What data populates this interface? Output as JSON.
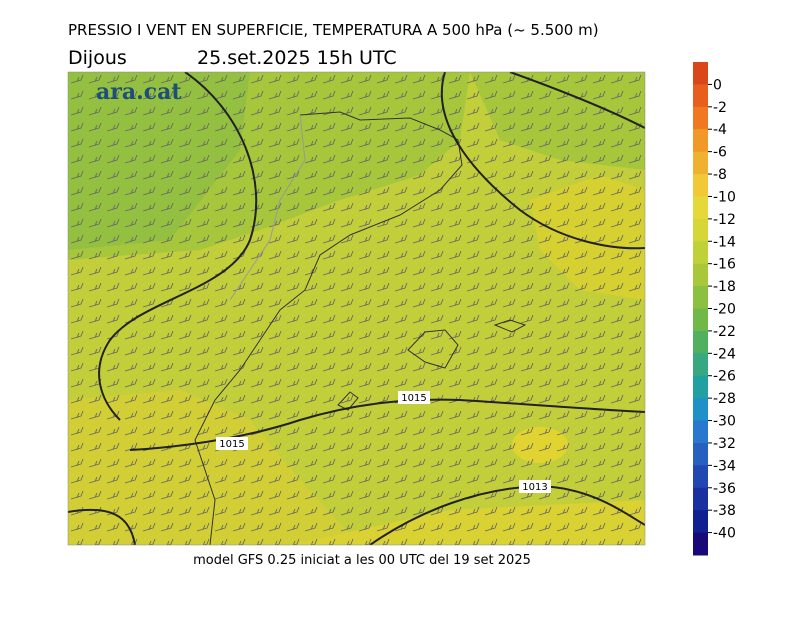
{
  "title": "PRESSIO I VENT EN SUPERFICIE, TEMPERATURA A 500 hPa (~ 5.500 m)",
  "day": "Dijous",
  "date": "25.set.2025 15h UTC",
  "footer": "model GFS 0.25 iniciat a les 00 UTC del 19 set 2025",
  "logo": "ara.cat",
  "colorbar": {
    "ticks": [
      0,
      -2,
      -4,
      -6,
      -8,
      -10,
      -12,
      -14,
      -16,
      -18,
      -20,
      -22,
      -24,
      -26,
      -28,
      -30,
      -32,
      -34,
      -36,
      -38,
      -40
    ],
    "colors": [
      "#d8461a",
      "#e85e1e",
      "#f07820",
      "#f09828",
      "#f0b030",
      "#f0c838",
      "#e6d83a",
      "#d6d638",
      "#c0d038",
      "#a8c83a",
      "#8cc040",
      "#70b848",
      "#50b060",
      "#38a880",
      "#20a0a0",
      "#2090c8",
      "#2878d0",
      "#2860c0",
      "#2048b0",
      "#1830a0",
      "#102090",
      "#180878"
    ]
  },
  "isobar_labels": [
    "1015",
    "1015",
    "1013"
  ]
}
